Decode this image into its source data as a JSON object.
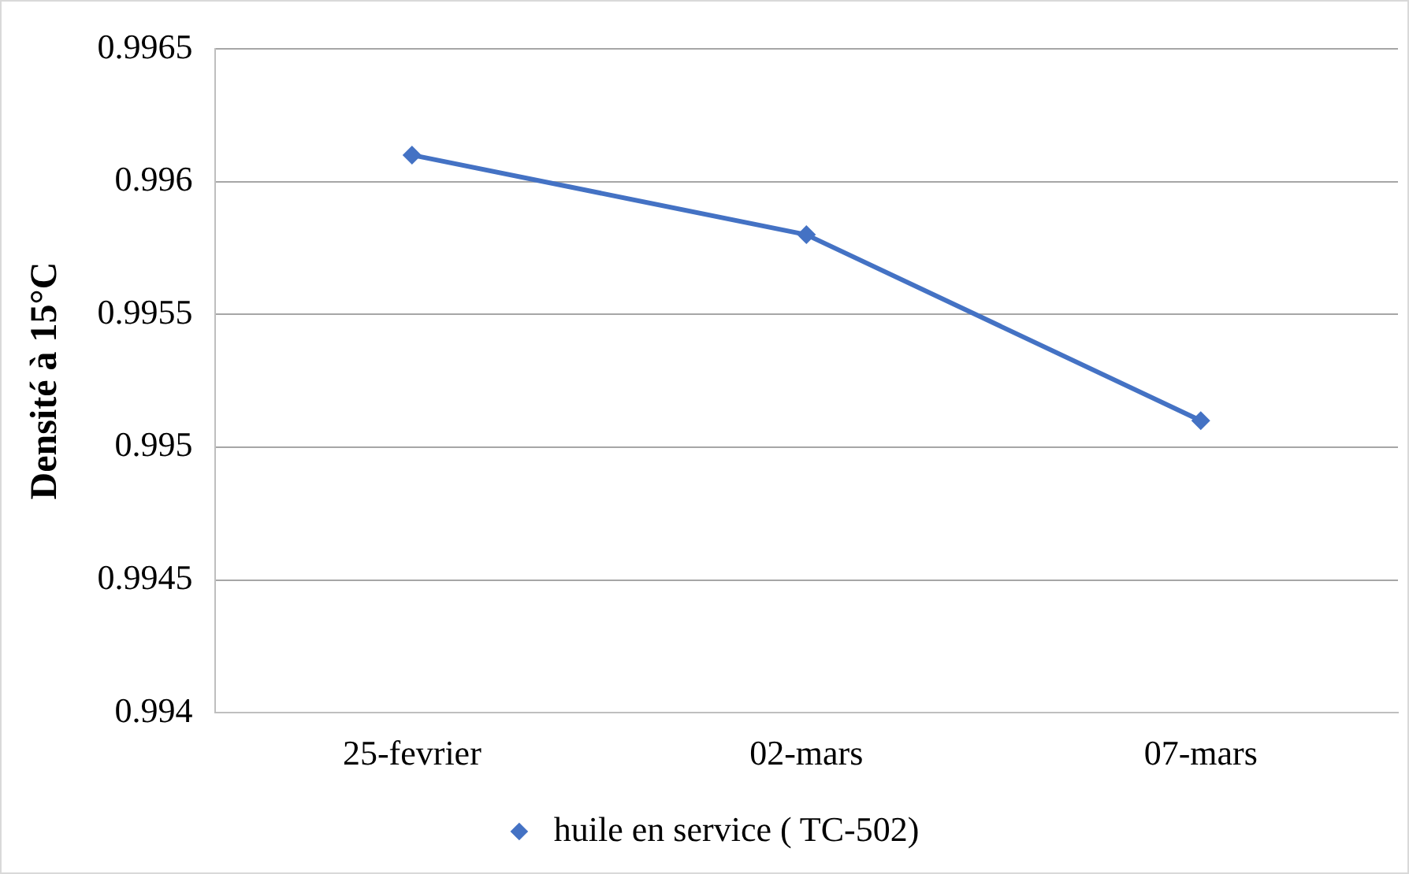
{
  "chart_data": {
    "type": "line",
    "ylabel": "Densité à 15°C",
    "categories": [
      "25-fevrier",
      "02-mars",
      "07-mars"
    ],
    "series": [
      {
        "name": "huile en service ( TC-502)",
        "color": "#4472c4",
        "values": [
          0.9961,
          0.9958,
          0.9951
        ]
      }
    ],
    "ylim": [
      0.994,
      0.9965
    ],
    "yticks": [
      0.994,
      0.9945,
      0.995,
      0.9955,
      0.996,
      0.9965
    ],
    "grid": "y",
    "legend": "bottom",
    "marker": "diamond",
    "line_style": "solid"
  }
}
